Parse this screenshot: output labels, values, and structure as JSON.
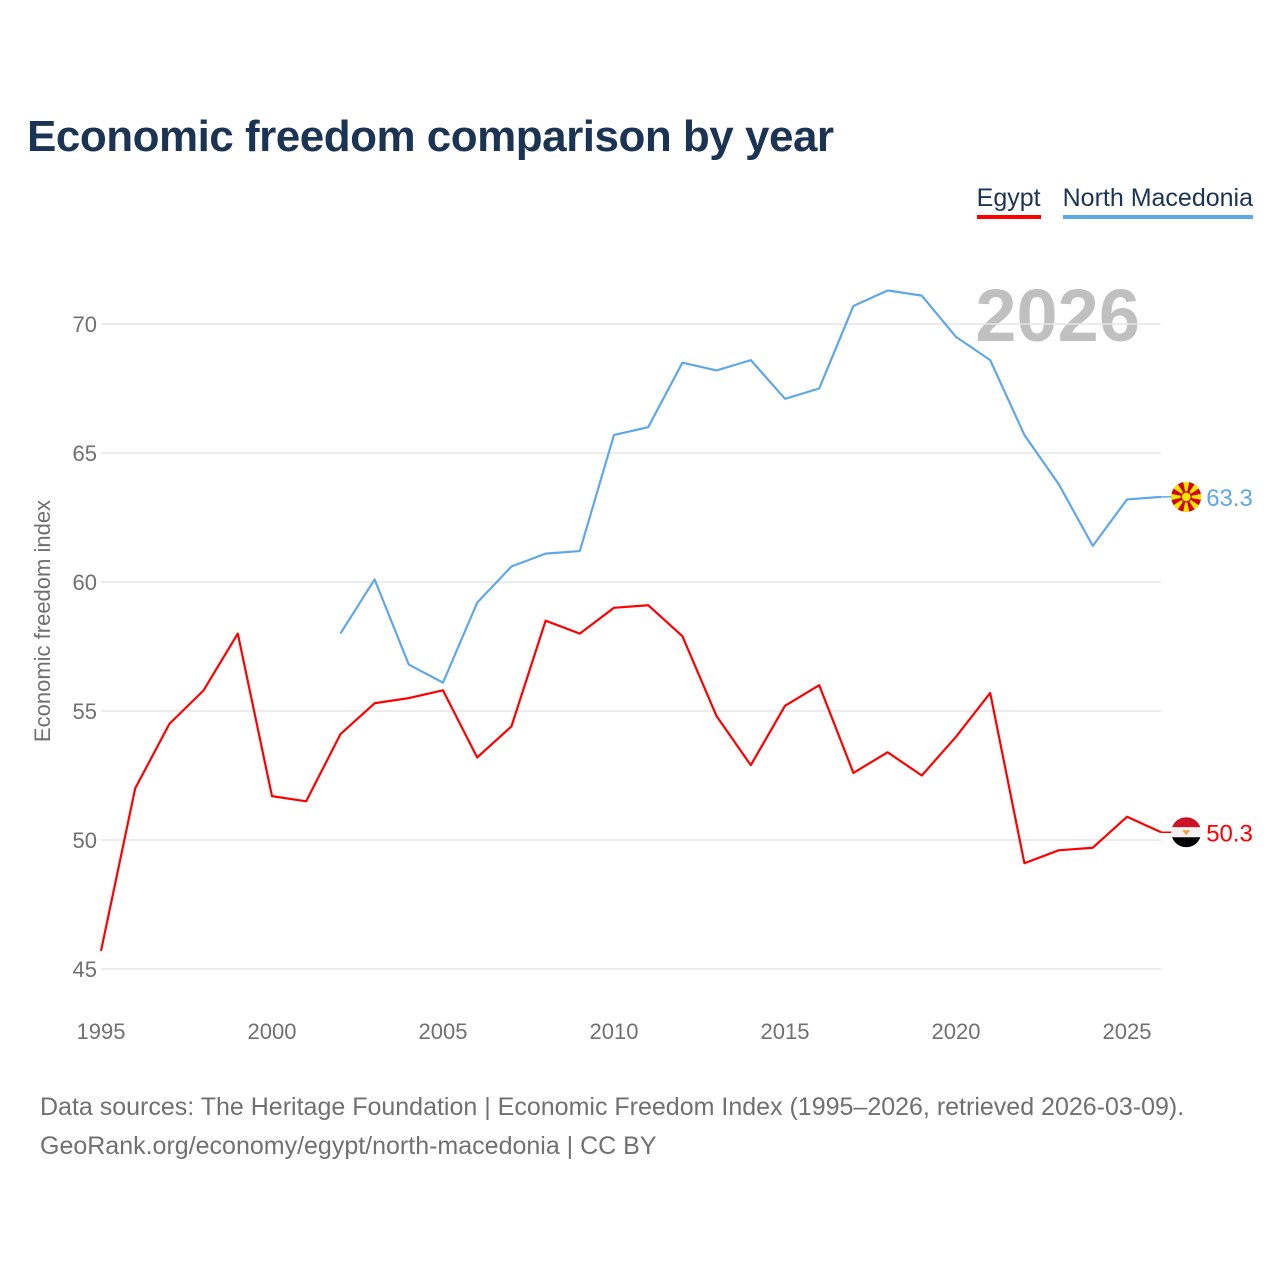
{
  "title": "Economic freedom comparison by year",
  "legend": [
    {
      "label": "Egypt",
      "color": "#ff0000"
    },
    {
      "label": "North Macedonia",
      "color": "#5fa8e8"
    }
  ],
  "year_watermark": "2026",
  "footer": {
    "line1": "Data sources: The Heritage Foundation | Economic Freedom Index (1995–2026, retrieved 2026-03-09).",
    "line2": "GeoRank.org/economy/egypt/north-macedonia | CC BY"
  },
  "chart_data": {
    "type": "line",
    "title": "Economic freedom comparison by year",
    "xlabel": "",
    "ylabel": "Economic freedom index",
    "xlim": [
      1995,
      2026
    ],
    "ylim": [
      45,
      72
    ],
    "xticks": [
      1995,
      2000,
      2005,
      2010,
      2015,
      2020,
      2025
    ],
    "yticks": [
      45,
      50,
      55,
      60,
      65,
      70
    ],
    "grid": true,
    "legend_position": "top-right",
    "series": [
      {
        "name": "Egypt",
        "color": "#ff0000",
        "end_label": "50.3",
        "flag": "egypt-flag",
        "x": [
          1995,
          1996,
          1997,
          1998,
          1999,
          2000,
          2001,
          2002,
          2003,
          2004,
          2005,
          2006,
          2007,
          2008,
          2009,
          2010,
          2011,
          2012,
          2013,
          2014,
          2015,
          2016,
          2017,
          2018,
          2019,
          2020,
          2021,
          2022,
          2023,
          2024,
          2025,
          2026
        ],
        "values": [
          45.7,
          52.0,
          54.5,
          55.8,
          58.0,
          51.7,
          51.5,
          54.1,
          55.3,
          55.5,
          55.8,
          53.2,
          54.4,
          58.5,
          58.0,
          59.0,
          59.1,
          57.9,
          54.8,
          52.9,
          55.2,
          56.0,
          52.6,
          53.4,
          52.5,
          54.0,
          55.7,
          49.1,
          49.6,
          49.7,
          50.9,
          50.3
        ]
      },
      {
        "name": "North Macedonia",
        "color": "#5fa8e8",
        "end_label": "63.3",
        "flag": "north-macedonia-flag",
        "x": [
          2002,
          2003,
          2004,
          2005,
          2006,
          2007,
          2008,
          2009,
          2010,
          2011,
          2012,
          2013,
          2014,
          2015,
          2016,
          2017,
          2018,
          2019,
          2020,
          2021,
          2022,
          2023,
          2024,
          2025,
          2026
        ],
        "values": [
          58.0,
          60.1,
          56.8,
          56.1,
          59.2,
          60.6,
          61.1,
          61.2,
          65.7,
          66.0,
          68.5,
          68.2,
          68.6,
          67.1,
          67.5,
          70.7,
          71.3,
          71.1,
          69.5,
          68.6,
          65.7,
          63.8,
          61.4,
          63.2,
          63.3
        ]
      }
    ]
  }
}
